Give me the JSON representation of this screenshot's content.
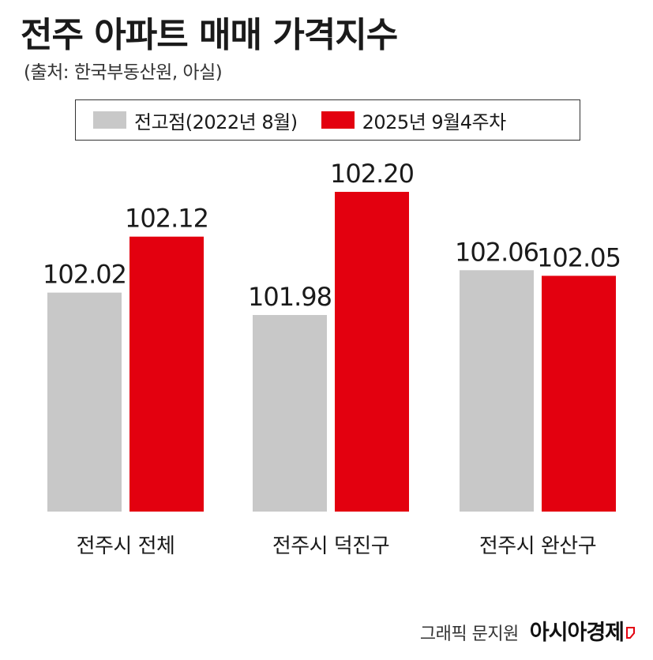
{
  "header": {
    "title": "전주 아파트 매매 가격지수",
    "source": "(출처: 한국부동산원, 아실)"
  },
  "footer": {
    "credit": "그래픽 문지원",
    "brand": "아시아경제"
  },
  "chart_data": {
    "type": "bar",
    "title": "전주 아파트 매매 가격지수",
    "categories": [
      "전주시 전체",
      "전주시 덕진구",
      "전주시 완산구"
    ],
    "series": [
      {
        "name": "전고점(2022년 8월)",
        "color": "#c8c8c8",
        "values": [
          102.02,
          101.98,
          102.06
        ],
        "labels": [
          "102.02",
          "101.98",
          "102.06"
        ]
      },
      {
        "name": "2025년 9월4주차",
        "color": "#e3000f",
        "values": [
          102.12,
          102.2,
          102.05
        ],
        "labels": [
          "102.12",
          "102.20",
          "102.05"
        ]
      }
    ],
    "legend": "top",
    "grid": false
  }
}
